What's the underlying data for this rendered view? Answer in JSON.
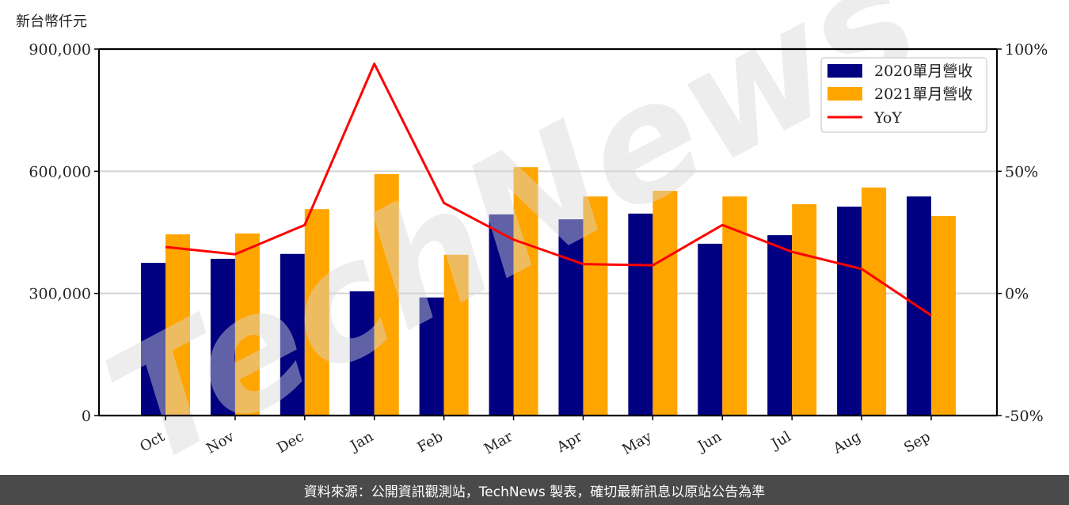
{
  "chart_data": {
    "type": "bar",
    "title": "",
    "y_unit_label": "新台幣仟元",
    "xlabel": "",
    "ylabel": "新台幣仟元",
    "categories": [
      "Oct",
      "Nov",
      "Dec",
      "Jan",
      "Feb",
      "Mar",
      "Apr",
      "May",
      "Jun",
      "Jul",
      "Aug",
      "Sep"
    ],
    "series": [
      {
        "name": "2020單月營收",
        "type": "bar",
        "axis": "left",
        "color": "#000080",
        "values": [
          375000,
          385000,
          397000,
          305000,
          290000,
          494000,
          482000,
          496000,
          422000,
          443000,
          513000,
          538000
        ]
      },
      {
        "name": "2021單月營收",
        "type": "bar",
        "axis": "left",
        "color": "#FFA500",
        "values": [
          445000,
          447000,
          507000,
          593000,
          395000,
          610000,
          538000,
          552000,
          538000,
          519000,
          560000,
          490000
        ]
      },
      {
        "name": "YoY",
        "type": "line",
        "axis": "right",
        "color": "#FF0000",
        "values": [
          19,
          16,
          28,
          94,
          37,
          22,
          12,
          11.5,
          28,
          17,
          10,
          -9
        ]
      }
    ],
    "ylim": [
      0,
      900000
    ],
    "y_ticks": [
      0,
      300000,
      600000,
      900000
    ],
    "y_tick_labels": [
      "0",
      "300,000",
      "600,000",
      "900,000"
    ],
    "y2lim": [
      -50,
      100
    ],
    "y2_ticks": [
      -50,
      0,
      50,
      100
    ],
    "y2_tick_labels": [
      "-50%",
      "0%",
      "50%",
      "100%"
    ],
    "grid": "horizontal",
    "legend_position": "upper right",
    "legend": [
      "2020單月營收",
      "2021單月營收",
      "YoY"
    ],
    "watermark": "TechNews"
  },
  "footer": {
    "text": "資料來源：公開資訊觀測站，TechNews 製表，確切最新訊息以原站公告為準"
  }
}
